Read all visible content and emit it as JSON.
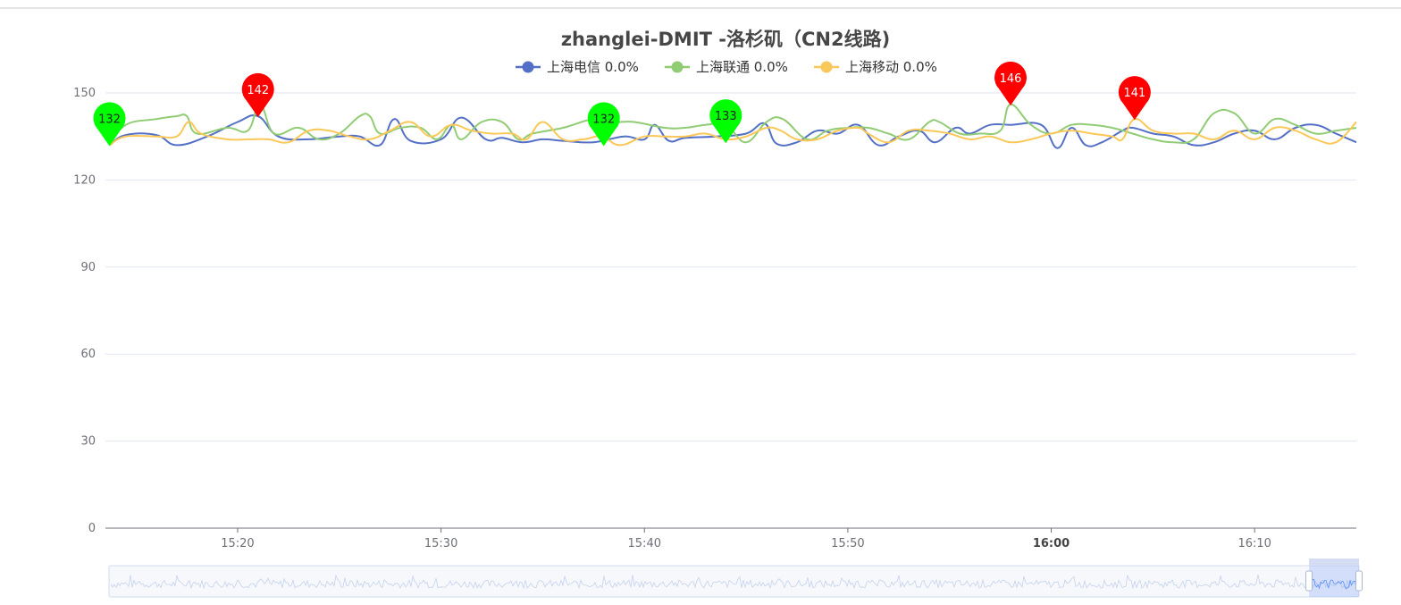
{
  "chart_data": {
    "type": "line",
    "title": "zhanglei-DMIT -洛杉矶（CN2线路)",
    "ylim": [
      0,
      150
    ],
    "yticks": [
      0,
      30,
      60,
      90,
      120,
      150
    ],
    "xticks": [
      "15:20",
      "15:30",
      "15:40",
      "15:50",
      "16:00",
      "16:10"
    ],
    "x_range_minutes": [
      913.5,
      975
    ],
    "grid": "horizontal",
    "legend_position": "top-center",
    "colors": {
      "line1": "#5470c6",
      "line2": "#91cc75",
      "line3": "#fac858",
      "max_pin": "#ff0000",
      "min_pin": "#00ff00"
    },
    "series": [
      {
        "name": "上海电信",
        "legend_label": "上海电信 0.0%",
        "x": [
          913.7,
          914.5,
          916,
          917,
          918.5,
          920,
          921,
          922,
          923.5,
          925,
          926,
          927,
          927.7,
          928.5,
          930,
          931,
          932.2,
          933,
          934,
          935,
          936,
          937.5,
          939,
          940,
          940.5,
          941.2,
          942,
          943.5,
          945,
          945.9,
          946.5,
          947.5,
          948.5,
          949.5,
          950.5,
          951.5,
          952.5,
          953.5,
          954.3,
          955.3,
          956,
          957,
          958,
          959.5,
          960.3,
          961,
          961.7,
          962.5,
          963.5,
          964,
          965,
          966,
          967,
          968,
          969,
          970,
          971,
          972,
          973,
          974,
          975
        ],
        "values": [
          132,
          135.5,
          135.5,
          132,
          135,
          140,
          142,
          135,
          134,
          135,
          135,
          132,
          141,
          133.5,
          134,
          141.5,
          134,
          134.5,
          133,
          134,
          133.5,
          133,
          135,
          134,
          139,
          133.5,
          134.5,
          135,
          136,
          139.5,
          132.5,
          133,
          137,
          136,
          139,
          132,
          135,
          137,
          133,
          138,
          136,
          139,
          139,
          139,
          131,
          138,
          132,
          133,
          137,
          138,
          136,
          135,
          132,
          133,
          136,
          137,
          134,
          138,
          139,
          136,
          133
        ]
      },
      {
        "name": "上海联通",
        "legend_label": "上海联通 0.0%",
        "x": [
          913.7,
          914.5,
          916,
          917,
          917.5,
          918,
          919.5,
          920.5,
          921.1,
          921.8,
          923,
          924,
          925,
          926,
          926.5,
          927,
          928,
          929,
          929.8,
          930.5,
          931,
          932,
          933,
          933.8,
          934.5,
          936,
          937.5,
          938.5,
          939.5,
          941,
          942,
          943,
          944,
          945,
          946,
          946.8,
          948,
          949,
          950,
          951,
          952,
          953,
          954,
          954.5,
          955.5,
          956.5,
          957.5,
          958,
          959,
          960,
          961,
          962,
          963,
          964,
          965,
          966,
          967,
          968,
          969,
          970,
          971,
          972,
          973,
          974,
          975
        ],
        "values": [
          132,
          139,
          141,
          142,
          142,
          136,
          138,
          137,
          146,
          136,
          138,
          134,
          136,
          142,
          142,
          136,
          138,
          138,
          134,
          139,
          134,
          140,
          140,
          134,
          136,
          138,
          141,
          140,
          140,
          138,
          138,
          139,
          139,
          133,
          140,
          141,
          134,
          137,
          138,
          138,
          136,
          134,
          140,
          140,
          136,
          136,
          137,
          146,
          139,
          136,
          139,
          139,
          138,
          136,
          134,
          133,
          134,
          143,
          143,
          136,
          141,
          139,
          136,
          137,
          138
        ]
      },
      {
        "name": "上海移动",
        "legend_label": "上海移动 0.0%",
        "x": [
          913.7,
          914.5,
          916,
          917,
          917.6,
          918.2,
          919.5,
          920.5,
          921.5,
          922.5,
          923.5,
          924.5,
          925.5,
          926.5,
          927.5,
          928.5,
          929.5,
          930.5,
          931.5,
          932.5,
          933.5,
          934.2,
          935,
          936,
          937,
          937.9,
          938.8,
          940,
          941,
          942,
          943,
          944,
          945,
          946,
          946.7,
          947.5,
          948.5,
          949.5,
          950.5,
          951,
          952,
          953,
          954,
          955,
          956,
          957,
          958,
          959,
          960,
          961,
          962,
          963,
          963.5,
          964.1,
          965,
          966,
          967,
          968,
          969,
          970,
          971,
          972,
          973,
          974,
          975
        ],
        "values": [
          132,
          135,
          135,
          135,
          140,
          136,
          134,
          134,
          134,
          133,
          137,
          137,
          135,
          134,
          137,
          140,
          135,
          139,
          137,
          136,
          136,
          134,
          140,
          134,
          134,
          135,
          132,
          135,
          135,
          135,
          136,
          134,
          135,
          138,
          137,
          134,
          134,
          137,
          138,
          136,
          133,
          137,
          137,
          136,
          134,
          135,
          133,
          134,
          136,
          137,
          136,
          135,
          134,
          141,
          137,
          136,
          136,
          134,
          137,
          134,
          138,
          137,
          134,
          133,
          140
        ]
      }
    ],
    "markers": [
      {
        "kind": "max",
        "series": "上海电信",
        "x": 921,
        "value": 142,
        "label": "142"
      },
      {
        "kind": "min",
        "series": "上海电信",
        "x": 913.7,
        "value": 132,
        "label": "132"
      },
      {
        "kind": "max",
        "series": "上海联通",
        "x": 958,
        "value": 146,
        "label": "146"
      },
      {
        "kind": "min",
        "series": "上海联通",
        "x": 944,
        "value": 133,
        "label": "133"
      },
      {
        "kind": "max",
        "series": "上海移动",
        "x": 964.1,
        "value": 141,
        "label": "141"
      },
      {
        "kind": "min",
        "series": "上海移动",
        "x": 938,
        "value": 132,
        "label": "132"
      }
    ],
    "data_zoom": {
      "range_percent": [
        96,
        100
      ]
    }
  }
}
